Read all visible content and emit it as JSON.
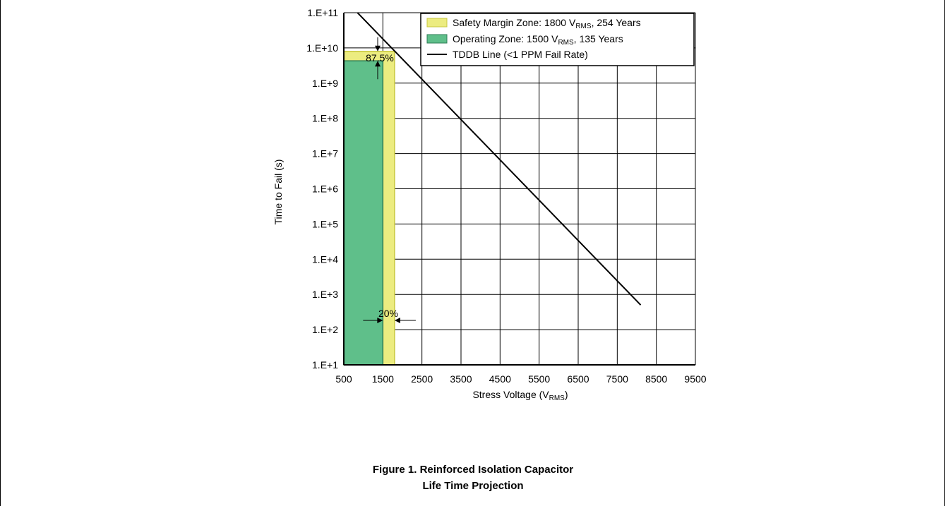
{
  "chart_data": {
    "type": "line",
    "xlabel_main": "Stress Voltage (V",
    "xlabel_sub": "RMS",
    "xlabel_tail": ")",
    "ylabel": "Time to Fail (s)",
    "xlim": [
      500,
      9500
    ],
    "x_ticks": [
      500,
      1500,
      2500,
      3500,
      4500,
      5500,
      6500,
      7500,
      8500,
      9500
    ],
    "x_tick_labels": [
      "500",
      "1500",
      "2500",
      "3500",
      "4500",
      "5500",
      "6500",
      "7500",
      "8500",
      "9500"
    ],
    "ylim_log10": [
      1,
      11
    ],
    "y_scale": "log",
    "y_ticks_log10": [
      1,
      2,
      3,
      4,
      5,
      6,
      7,
      8,
      9,
      10,
      11
    ],
    "y_tick_labels": [
      "1.E+1",
      "1.E+2",
      "1.E+3",
      "1.E+4",
      "1.E+5",
      "1.E+6",
      "1.E+7",
      "1.E+8",
      "1.E+9",
      "1.E+10",
      "1.E+11"
    ],
    "grid": true,
    "legend_placement": "top-right",
    "series": [
      {
        "name": "Safety Margin Zone: 1800 V",
        "name_sub": "RMS",
        "name_tail": ", 254 Years",
        "kind": "zone",
        "x_max": 1800,
        "time_to_fail_s": 8000000000.0,
        "fill": "#ecec80",
        "stroke": "#c8c840"
      },
      {
        "name": "Operating Zone: 1500 V",
        "name_sub": "RMS",
        "name_tail": ", 135 Years",
        "kind": "zone",
        "x_max": 1500,
        "time_to_fail_s": 4300000000.0,
        "fill": "#5fbf8a",
        "stroke": "#2e7d55"
      },
      {
        "name": "TDDB Line (<1 PPM Fail Rate)",
        "kind": "line",
        "x": [
          850,
          8100
        ],
        "time_to_fail_s": [
          100000000000.0,
          500.0
        ],
        "stroke": "#000000"
      }
    ],
    "annotations": [
      {
        "text": "87.5%"
      },
      {
        "text": "20%"
      }
    ]
  },
  "caption": {
    "line1": "Figure 1. Reinforced Isolation Capacitor",
    "line2": "Life Time Projection"
  }
}
